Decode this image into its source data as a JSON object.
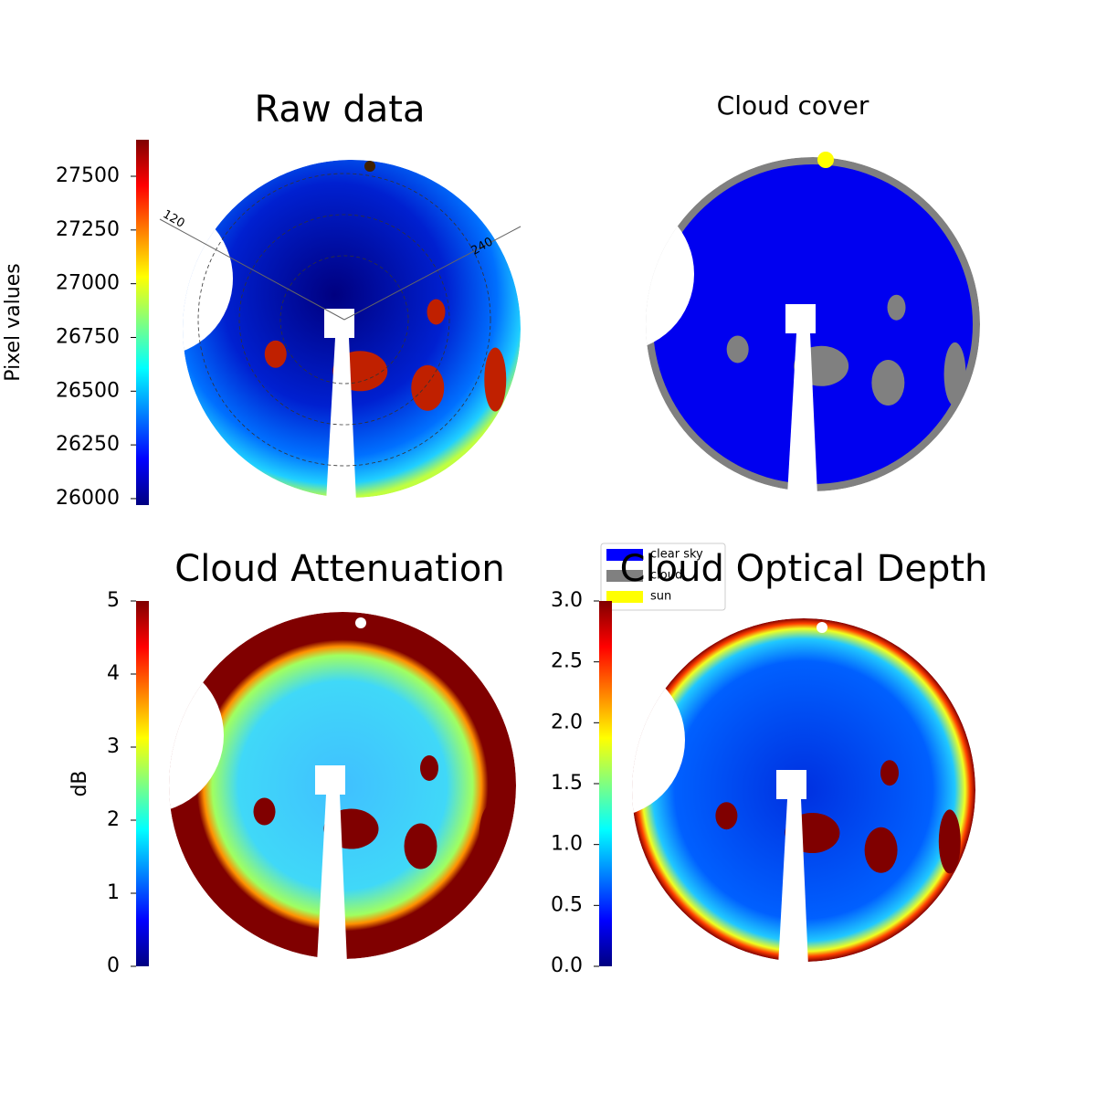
{
  "chart_data": [
    {
      "type": "image",
      "title": "Raw data",
      "colorbar_label": "Pixel values",
      "colormap": "jet",
      "clim": [
        25970,
        27670
      ],
      "cticks": [
        26000,
        26250,
        26500,
        26750,
        27000,
        27250,
        27500
      ],
      "polar_labels": [
        "120",
        "240"
      ]
    },
    {
      "type": "image",
      "title": "Cloud cover",
      "series": [
        {
          "name": "clear sky",
          "color": "#0000ff"
        },
        {
          "name": "cloud",
          "color": "#808080"
        },
        {
          "name": "sun",
          "color": "#ffff00"
        }
      ]
    },
    {
      "type": "image",
      "title": "Cloud Attenuation",
      "colorbar_label": "dB",
      "colormap": "jet",
      "clim": [
        0,
        5
      ],
      "cticks": [
        0,
        1,
        2,
        3,
        4,
        5
      ]
    },
    {
      "type": "image",
      "title": "Cloud Optical Depth",
      "colormap": "jet",
      "clim": [
        0,
        3
      ],
      "cticks": [
        {
          "value": 0,
          "label": "0.0"
        },
        0.5,
        {
          "value": 1,
          "label": "1.0"
        },
        1.5,
        {
          "value": 2,
          "label": "2.0"
        },
        2.5,
        {
          "value": 3,
          "label": "3.0"
        }
      ]
    }
  ]
}
